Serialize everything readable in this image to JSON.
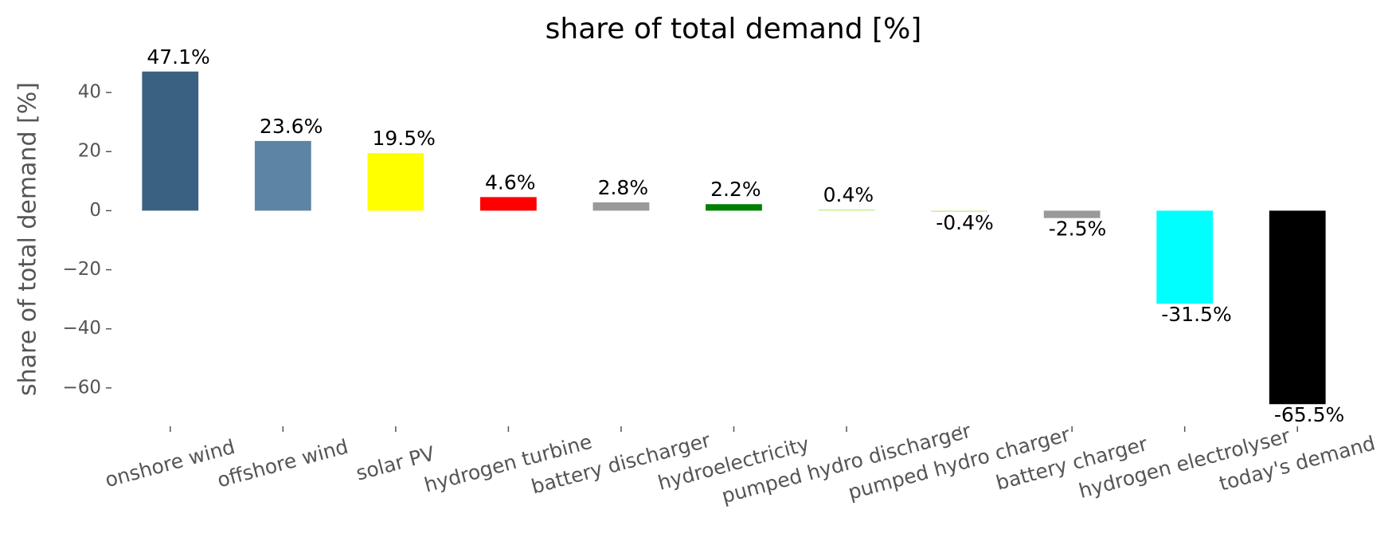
{
  "chart_data": {
    "type": "bar",
    "title": "share of total demand [%]",
    "y_label": "share of total demand [%]",
    "categories": [
      "onshore wind",
      "offshore wind",
      "solar PV",
      "hydrogen turbine",
      "battery discharger",
      "hydroelectricity",
      "pumped hydro discharger",
      "pumped hydro charger",
      "battery charger",
      "hydrogen electrolyser",
      "today's demand"
    ],
    "values": [
      47.1,
      23.6,
      19.5,
      4.6,
      2.8,
      2.2,
      0.4,
      -0.4,
      -2.5,
      -31.5,
      -65.5
    ],
    "value_labels": [
      "47.1%",
      "23.6%",
      "19.5%",
      "4.6%",
      "2.8%",
      "2.2%",
      "0.4%",
      "-0.4%",
      "-2.5%",
      "-31.5%",
      "-65.5%"
    ],
    "colors": [
      "#3b6182",
      "#5e84a4",
      "#ffff00",
      "#ff0000",
      "#999999",
      "#008000",
      "#c8ee90",
      "#c8ee90",
      "#999999",
      "#00ffff",
      "#000000"
    ],
    "ylim": [
      -71.1,
      52.7
    ],
    "yticks": [
      {
        "value": -60,
        "label": "−60"
      },
      {
        "value": -40,
        "label": "−40"
      },
      {
        "value": -20,
        "label": "−20"
      },
      0,
      20,
      40
    ]
  }
}
